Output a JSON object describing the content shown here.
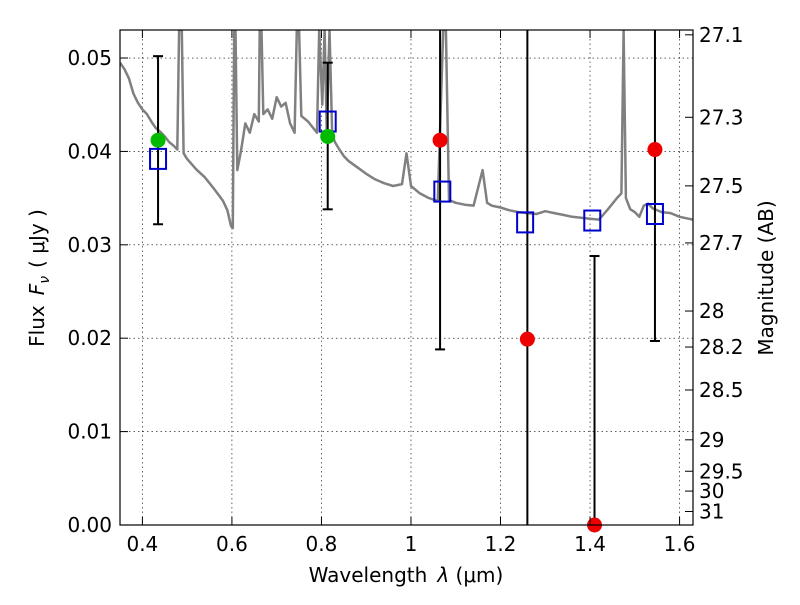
{
  "chart_data": {
    "type": "scatter",
    "xlabel_prefix": "Wavelength",
    "xlabel_var": "λ",
    "xlabel_unit": "(μm)",
    "ylabel_prefix": "Flux",
    "ylabel_var": "F",
    "ylabel_sub": "ν",
    "ylabel_unit": "( μJy )",
    "y2label": "Magnitude (AB)",
    "xlim": [
      0.35,
      1.63
    ],
    "ylim": [
      0.0,
      0.053
    ],
    "grid": true,
    "colors": {
      "model": "#808080",
      "filled_green": "#00bb00",
      "filled_red": "#ee0000",
      "open_squares": "#0000cc",
      "errorbars": "#000000"
    },
    "x_ticks": [
      {
        "value": 0.4,
        "label": "0.4"
      },
      {
        "value": 0.6,
        "label": "0.6"
      },
      {
        "value": 0.8,
        "label": "0.8"
      },
      {
        "value": 1.0,
        "label": "1"
      },
      {
        "value": 1.2,
        "label": "1.2"
      },
      {
        "value": 1.4,
        "label": "1.4"
      },
      {
        "value": 1.6,
        "label": "1.6"
      }
    ],
    "y_ticks": [
      {
        "value": 0.0,
        "label": "0.00"
      },
      {
        "value": 0.01,
        "label": "0.01"
      },
      {
        "value": 0.02,
        "label": "0.02"
      },
      {
        "value": 0.03,
        "label": "0.03"
      },
      {
        "value": 0.04,
        "label": "0.04"
      },
      {
        "value": 0.05,
        "label": "0.05"
      }
    ],
    "y2_ticks": [
      {
        "mag": 27.1,
        "label": "27.1"
      },
      {
        "mag": 27.3,
        "label": "27.3"
      },
      {
        "mag": 27.5,
        "label": "27.5"
      },
      {
        "mag": 27.7,
        "label": "27.7"
      },
      {
        "mag": 28,
        "label": "28"
      },
      {
        "mag": 28.2,
        "label": "28.2"
      },
      {
        "mag": 28.5,
        "label": "28.5"
      },
      {
        "mag": 29,
        "label": "29"
      },
      {
        "mag": 29.5,
        "label": "29.5"
      },
      {
        "mag": 30,
        "label": "30"
      },
      {
        "mag": 31,
        "label": "31"
      }
    ],
    "observed": [
      {
        "x": 0.435,
        "y": 0.0412,
        "color": "green",
        "err_low": 0.0322,
        "err_high": 0.0502
      },
      {
        "x": 0.814,
        "y": 0.0416,
        "color": "green",
        "err_low": 0.0338,
        "err_high": 0.0495
      },
      {
        "x": 1.065,
        "y": 0.0412,
        "color": "red",
        "err_low": 0.0188,
        "err_high": 0.053
      },
      {
        "x": 1.26,
        "y": 0.0199,
        "color": "red",
        "err_low": 0.0,
        "err_high": 0.053
      },
      {
        "x": 1.41,
        "y": 0.0,
        "color": "red",
        "err_low": 0.0,
        "err_high": 0.0288
      },
      {
        "x": 1.545,
        "y": 0.0402,
        "color": "red",
        "err_low": 0.0197,
        "err_high": 0.053
      }
    ],
    "model_photometry": [
      {
        "x": 0.435,
        "y": 0.0392
      },
      {
        "x": 0.814,
        "y": 0.0432
      },
      {
        "x": 1.07,
        "y": 0.0357
      },
      {
        "x": 1.255,
        "y": 0.0324
      },
      {
        "x": 1.405,
        "y": 0.0326
      },
      {
        "x": 1.545,
        "y": 0.0333
      }
    ],
    "model_spectrum": [
      [
        0.35,
        0.0495
      ],
      [
        0.36,
        0.0488
      ],
      [
        0.37,
        0.0478
      ],
      [
        0.38,
        0.0462
      ],
      [
        0.39,
        0.0452
      ],
      [
        0.4,
        0.0445
      ],
      [
        0.41,
        0.044
      ],
      [
        0.42,
        0.0432
      ],
      [
        0.43,
        0.0425
      ],
      [
        0.44,
        0.0421
      ],
      [
        0.45,
        0.0416
      ],
      [
        0.46,
        0.041
      ],
      [
        0.47,
        0.0406
      ],
      [
        0.478,
        0.0402
      ],
      [
        0.482,
        0.053
      ],
      [
        0.488,
        0.053
      ],
      [
        0.492,
        0.0398
      ],
      [
        0.5,
        0.0392
      ],
      [
        0.52,
        0.0381
      ],
      [
        0.54,
        0.0372
      ],
      [
        0.56,
        0.036
      ],
      [
        0.58,
        0.0347
      ],
      [
        0.59,
        0.0337
      ],
      [
        0.598,
        0.032
      ],
      [
        0.602,
        0.0318
      ],
      [
        0.605,
        0.053
      ],
      [
        0.608,
        0.053
      ],
      [
        0.612,
        0.038
      ],
      [
        0.62,
        0.04
      ],
      [
        0.625,
        0.0415
      ],
      [
        0.63,
        0.043
      ],
      [
        0.64,
        0.042
      ],
      [
        0.65,
        0.044
      ],
      [
        0.66,
        0.0432
      ],
      [
        0.662,
        0.053
      ],
      [
        0.666,
        0.053
      ],
      [
        0.67,
        0.044
      ],
      [
        0.68,
        0.0445
      ],
      [
        0.69,
        0.0435
      ],
      [
        0.7,
        0.0458
      ],
      [
        0.71,
        0.0448
      ],
      [
        0.72,
        0.0452
      ],
      [
        0.73,
        0.043
      ],
      [
        0.74,
        0.042
      ],
      [
        0.745,
        0.053
      ],
      [
        0.75,
        0.053
      ],
      [
        0.755,
        0.0438
      ],
      [
        0.77,
        0.0432
      ],
      [
        0.78,
        0.0426
      ],
      [
        0.79,
        0.042
      ],
      [
        0.795,
        0.053
      ],
      [
        0.802,
        0.045
      ],
      [
        0.807,
        0.053
      ],
      [
        0.812,
        0.042
      ],
      [
        0.818,
        0.053
      ],
      [
        0.824,
        0.0418
      ],
      [
        0.83,
        0.041
      ],
      [
        0.84,
        0.0402
      ],
      [
        0.85,
        0.0395
      ],
      [
        0.86,
        0.039
      ],
      [
        0.88,
        0.0383
      ],
      [
        0.9,
        0.0376
      ],
      [
        0.92,
        0.037
      ],
      [
        0.94,
        0.0366
      ],
      [
        0.96,
        0.0363
      ],
      [
        0.98,
        0.0365
      ],
      [
        0.99,
        0.0398
      ],
      [
        1.0,
        0.0363
      ],
      [
        1.02,
        0.0355
      ],
      [
        1.04,
        0.035
      ],
      [
        1.06,
        0.0347
      ],
      [
        1.072,
        0.053
      ],
      [
        1.078,
        0.053
      ],
      [
        1.085,
        0.0348
      ],
      [
        1.1,
        0.0345
      ],
      [
        1.12,
        0.0343
      ],
      [
        1.14,
        0.0342
      ],
      [
        1.16,
        0.038
      ],
      [
        1.17,
        0.0345
      ],
      [
        1.18,
        0.0342
      ],
      [
        1.2,
        0.034
      ],
      [
        1.22,
        0.0337
      ],
      [
        1.24,
        0.0335
      ],
      [
        1.26,
        0.0334
      ],
      [
        1.28,
        0.0333
      ],
      [
        1.3,
        0.0336
      ],
      [
        1.32,
        0.0334
      ],
      [
        1.34,
        0.0332
      ],
      [
        1.36,
        0.033
      ],
      [
        1.38,
        0.0329
      ],
      [
        1.4,
        0.0328
      ],
      [
        1.42,
        0.0327
      ],
      [
        1.44,
        0.0338
      ],
      [
        1.46,
        0.035
      ],
      [
        1.47,
        0.0355
      ],
      [
        1.475,
        0.053
      ],
      [
        1.48,
        0.035
      ],
      [
        1.49,
        0.0338
      ],
      [
        1.5,
        0.0335
      ],
      [
        1.51,
        0.033
      ],
      [
        1.52,
        0.0342
      ],
      [
        1.53,
        0.0344
      ],
      [
        1.54,
        0.0339
      ],
      [
        1.56,
        0.0335
      ],
      [
        1.58,
        0.0334
      ],
      [
        1.6,
        0.033
      ],
      [
        1.63,
        0.0327
      ]
    ]
  }
}
